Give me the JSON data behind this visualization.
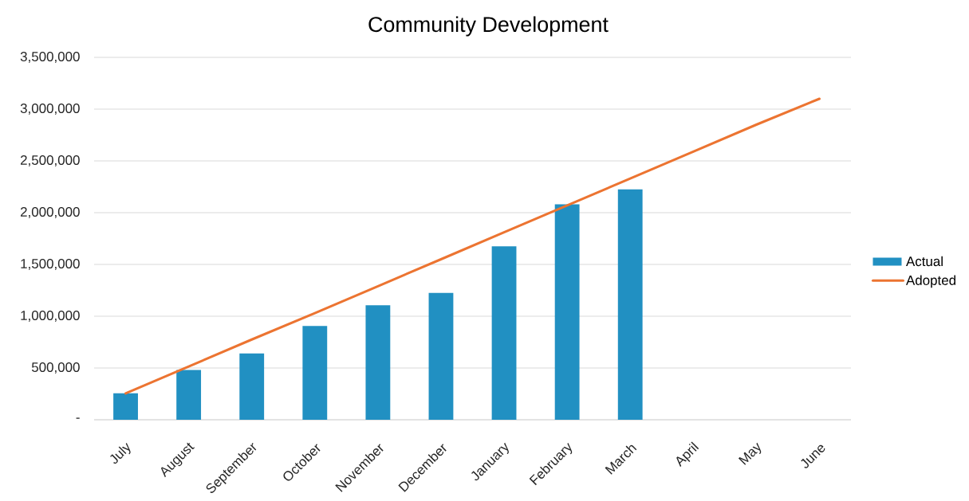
{
  "chart_data": {
    "type": "bar",
    "title": "Community Development",
    "categories": [
      "July",
      "August",
      "September",
      "October",
      "November",
      "December",
      "January",
      "February",
      "March",
      "April",
      "May",
      "June"
    ],
    "series": [
      {
        "name": "Actual",
        "color": "#2190c2",
        "values": [
          255000,
          480000,
          640000,
          905000,
          1105000,
          1225000,
          1675000,
          2080000,
          2225000,
          null,
          null,
          null
        ]
      },
      {
        "name": "Adopted",
        "type": "line",
        "color": "#ec7431",
        "values": [
          255000,
          515000,
          775000,
          1030000,
          1290000,
          1550000,
          1810000,
          2070000,
          2330000,
          2590000,
          2850000,
          3100000
        ]
      }
    ],
    "ylim": [
      0,
      3500000
    ],
    "yticks": [
      {
        "value": 0,
        "label": "-"
      },
      {
        "value": 500000,
        "label": "500,000"
      },
      {
        "value": 1000000,
        "label": "1,000,000"
      },
      {
        "value": 1500000,
        "label": "1,500,000"
      },
      {
        "value": 2000000,
        "label": "2,000,000"
      },
      {
        "value": 2500000,
        "label": "2,500,000"
      },
      {
        "value": 3000000,
        "label": "3,000,000"
      },
      {
        "value": 3500000,
        "label": "3,500,000"
      }
    ],
    "grid": "y",
    "legend": "right"
  }
}
